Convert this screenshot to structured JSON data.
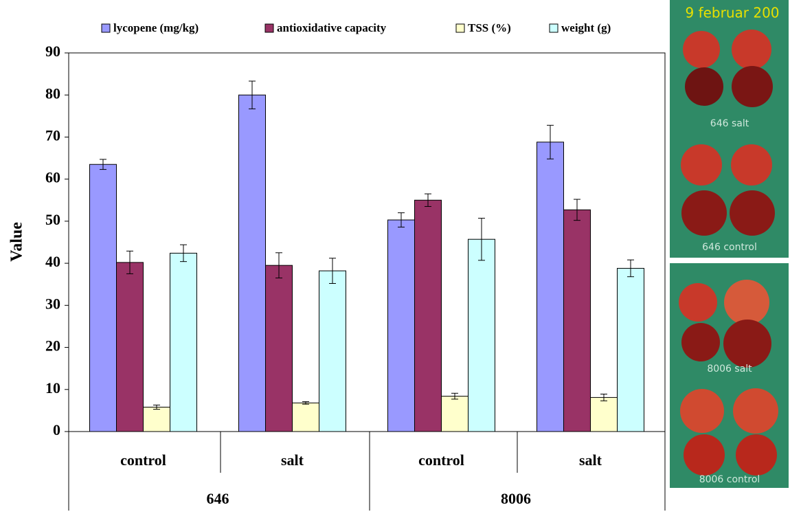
{
  "chart_data": {
    "type": "bar",
    "y_label": "Value",
    "categories": [
      "control",
      "salt",
      "control",
      "salt"
    ],
    "group_labels": [
      "646",
      "8006"
    ],
    "series": [
      {
        "name": "lycopene (mg/kg)",
        "color": "#9999ff",
        "values": [
          63.5,
          80,
          50.3,
          68.8
        ],
        "errors": [
          1.2,
          3.3,
          1.7,
          4
        ]
      },
      {
        "name": "antioxidative capacity",
        "color": "#993366",
        "values": [
          40.2,
          39.5,
          55,
          52.7
        ],
        "errors": [
          2.7,
          3,
          1.5,
          2.5
        ]
      },
      {
        "name": "TSS (%)",
        "color": "#ffffcc",
        "values": [
          5.8,
          6.8,
          8.4,
          8.1
        ],
        "errors": [
          0.5,
          0.3,
          0.7,
          0.8
        ]
      },
      {
        "name": "weight (g)",
        "color": "#ccffff",
        "values": [
          42.4,
          38.2,
          45.7,
          38.8
        ],
        "errors": [
          2,
          3,
          5,
          2
        ]
      }
    ],
    "ylim": [
      0,
      90
    ],
    "yticks": [
      0,
      10,
      20,
      30,
      40,
      50,
      60,
      70,
      80,
      90
    ],
    "grid": false,
    "legend": "top"
  },
  "photos": {
    "date": "9 februar 200",
    "labels": [
      "646 salt",
      "646 control",
      "8006 salt",
      "8006 control"
    ]
  }
}
